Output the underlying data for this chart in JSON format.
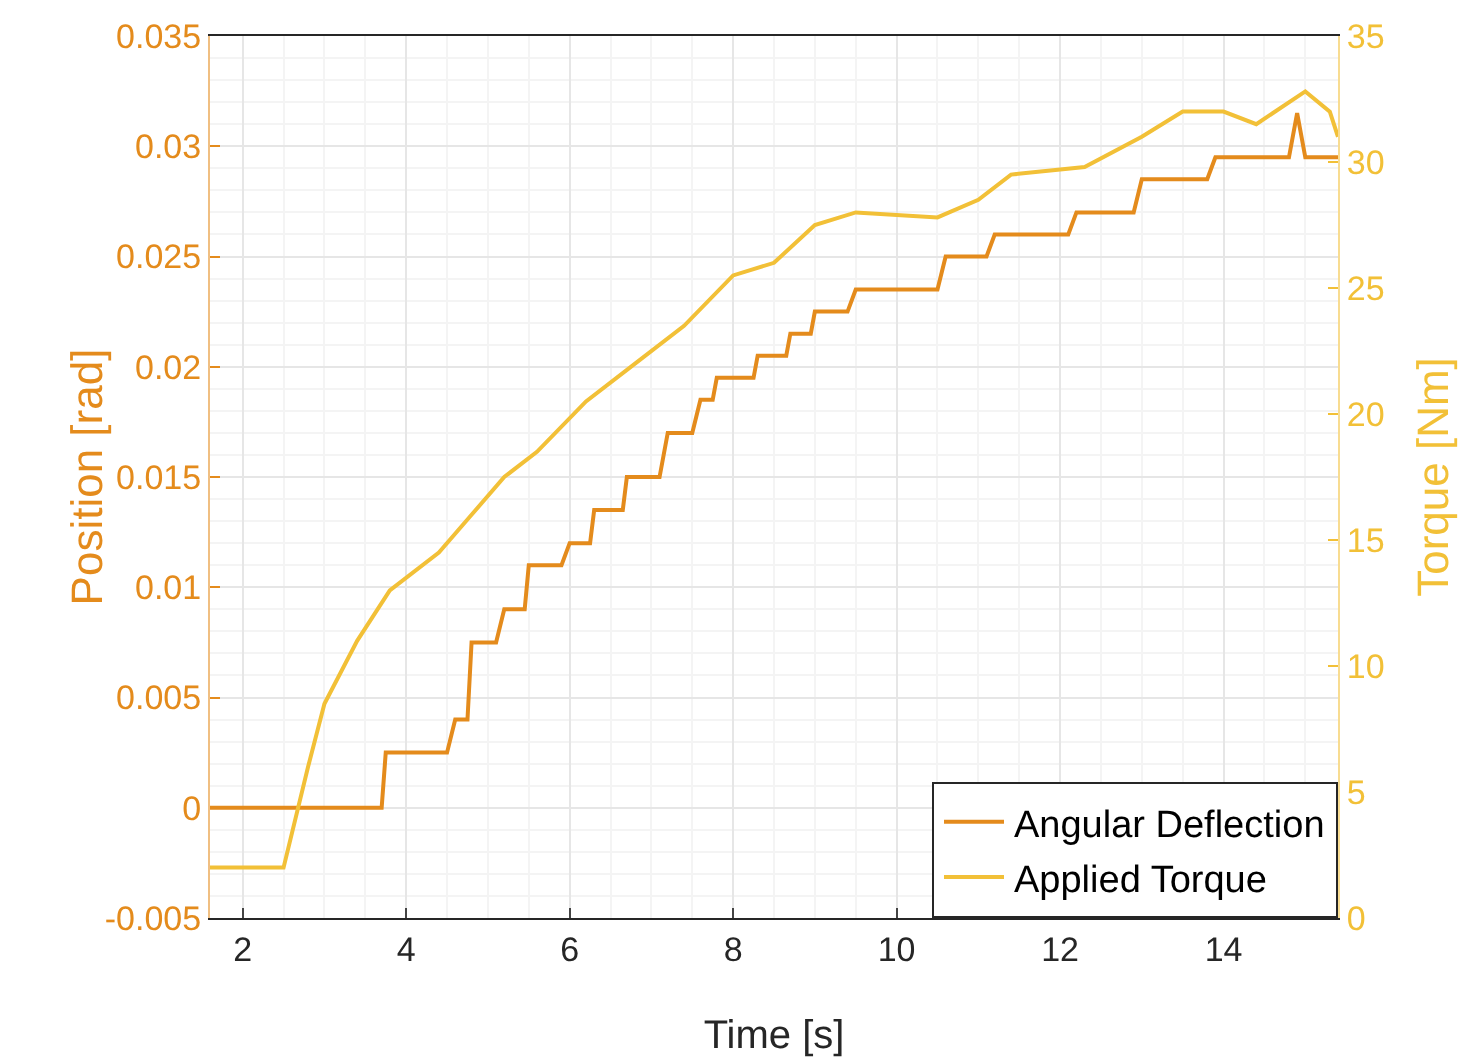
{
  "chart_data": {
    "type": "line",
    "xlabel": "Time [s]",
    "ylabel": "Position [rad]",
    "y2label": "Torque [Nm]",
    "xlim": [
      1.6,
      15.4
    ],
    "xticks": [
      2,
      4,
      6,
      8,
      10,
      12,
      14
    ],
    "ylim": [
      -0.005,
      0.035
    ],
    "yticks": [
      -0.005,
      0,
      0.005,
      0.01,
      0.015,
      0.02,
      0.025,
      0.03,
      0.035
    ],
    "y2lim": [
      0,
      35
    ],
    "y2ticks": [
      0,
      5,
      10,
      15,
      20,
      25,
      30,
      35
    ],
    "grid": true,
    "legend": "bottom right",
    "marker": "none",
    "line_style": "solid",
    "series": [
      {
        "name": "Angular Deflection",
        "color": "#e48b1c",
        "x": [
          1.6,
          2.5,
          3.7,
          3.75,
          4.5,
          4.6,
          4.75,
          4.8,
          5.1,
          5.2,
          5.45,
          5.5,
          5.9,
          6.0,
          6.25,
          6.3,
          6.65,
          6.7,
          7.1,
          7.2,
          7.5,
          7.6,
          7.75,
          7.8,
          8.25,
          8.3,
          8.65,
          8.7,
          8.95,
          9.0,
          9.4,
          9.5,
          10.5,
          10.6,
          11.1,
          11.2,
          12.1,
          12.2,
          12.9,
          13.0,
          13.8,
          13.9,
          14.8,
          14.9,
          15.0,
          15.1,
          15.4
        ],
        "values": [
          0,
          0,
          0,
          0.0025,
          0.0025,
          0.004,
          0.004,
          0.0075,
          0.0075,
          0.009,
          0.009,
          0.011,
          0.011,
          0.012,
          0.012,
          0.0135,
          0.0135,
          0.015,
          0.015,
          0.017,
          0.017,
          0.0185,
          0.0185,
          0.0195,
          0.0195,
          0.0205,
          0.0205,
          0.0215,
          0.0215,
          0.0225,
          0.0225,
          0.0235,
          0.0235,
          0.025,
          0.025,
          0.026,
          0.026,
          0.027,
          0.027,
          0.0285,
          0.0285,
          0.0295,
          0.0295,
          0.0315,
          0.0295,
          0.0295,
          0.0295
        ]
      },
      {
        "name": "Applied Torque",
        "color": "#f2c037",
        "x": [
          1.6,
          2.5,
          2.8,
          3.0,
          3.4,
          3.8,
          4.4,
          4.8,
          5.2,
          5.6,
          6.2,
          6.8,
          7.4,
          8.0,
          8.5,
          9.0,
          9.5,
          10.5,
          11.0,
          11.4,
          12.3,
          13.0,
          13.5,
          14.0,
          14.4,
          15.0,
          15.3,
          15.4
        ],
        "values": [
          2,
          2,
          6,
          8.5,
          11,
          13,
          14.5,
          16,
          17.5,
          18.5,
          20.5,
          22,
          23.5,
          25.5,
          26,
          27.5,
          28,
          27.8,
          28.5,
          29.5,
          29.8,
          31,
          32,
          32,
          31.5,
          32.8,
          32,
          31
        ],
        "axis": "y2"
      }
    ]
  }
}
